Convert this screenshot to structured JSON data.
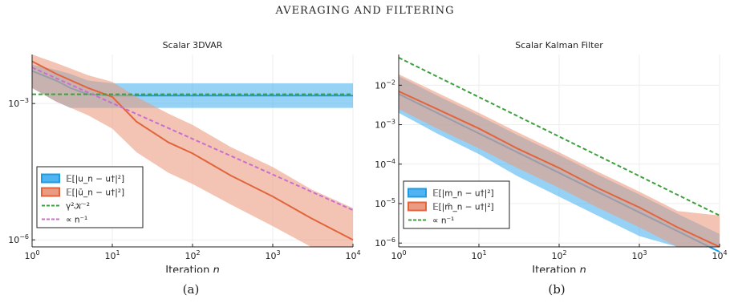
{
  "figure": {
    "title": "AVERAGING AND FILTERING",
    "subcaptions": [
      "(a)",
      "(b)"
    ]
  },
  "chart_data": [
    {
      "type": "line",
      "title": "Scalar 3DVAR",
      "xlabel": "Iteration n",
      "ylabel": "",
      "xscale": "log",
      "yscale": "log",
      "xlim": [
        1,
        10000
      ],
      "ylim": [
        7e-07,
        0.012
      ],
      "xticks": [
        {
          "v": 1,
          "b": "10",
          "e": "0"
        },
        {
          "v": 10,
          "b": "10",
          "e": "1"
        },
        {
          "v": 100,
          "b": "10",
          "e": "2"
        },
        {
          "v": 1000,
          "b": "10",
          "e": "3"
        },
        {
          "v": 10000,
          "b": "10",
          "e": "4"
        }
      ],
      "yticks": [
        {
          "v": 0.001,
          "b": "10",
          "e": "−3"
        },
        {
          "v": 1e-06,
          "b": "10",
          "e": "−6"
        }
      ],
      "grid": true,
      "legend_position": "bottom-left",
      "series": [
        {
          "name": "𝔼[|u_n − u†|²]",
          "kind": "band",
          "color": "#1e9be6",
          "fill": "#4fb4f0",
          "x": [
            1,
            2,
            3,
            5,
            10,
            20,
            50,
            100,
            300,
            1000,
            3000,
            10000
          ],
          "y": [
            0.0052,
            0.0032,
            0.0022,
            0.0016,
            0.0015,
            0.0015,
            0.0015,
            0.0015,
            0.0015,
            0.0015,
            0.0015,
            0.0015
          ],
          "lower": [
            0.0022,
            0.0011,
            0.0008,
            0.0008,
            0.0008,
            0.0008,
            0.0008,
            0.0008,
            0.0008,
            0.0008,
            0.0008,
            0.0008
          ],
          "upper": [
            0.0072,
            0.0055,
            0.0045,
            0.0032,
            0.0028,
            0.0028,
            0.0028,
            0.0028,
            0.0028,
            0.0028,
            0.0028,
            0.0028
          ]
        },
        {
          "name": "𝔼[|ū_n − u†|²]",
          "kind": "band",
          "color": "#e2643c",
          "fill": "#eb9c80",
          "x": [
            1,
            2,
            5,
            10,
            20,
            50,
            100,
            300,
            1000,
            3000,
            10000
          ],
          "y": [
            0.0085,
            0.0045,
            0.0022,
            0.0014,
            0.0004,
            0.00014,
            8e-05,
            2.6e-05,
            9e-06,
            3e-06,
            1e-06
          ],
          "lower": [
            0.0022,
            0.0011,
            0.00055,
            0.00028,
            8.5e-05,
            3e-05,
            1.7e-05,
            6e-06,
            2e-06,
            7e-07,
            7e-07
          ],
          "upper": [
            0.012,
            0.0078,
            0.0042,
            0.003,
            0.0014,
            0.0006,
            0.00034,
            0.00011,
            4e-05,
            1.3e-05,
            5e-06
          ]
        },
        {
          "name": "γ²𝒦⁻²",
          "kind": "line",
          "style": "dashed",
          "color": "#3ca03c",
          "x": [
            1,
            10000
          ],
          "y": [
            0.0016,
            0.0016
          ]
        },
        {
          "name": "∝ n⁻¹",
          "kind": "line",
          "style": "dashed",
          "color": "#c86ed2",
          "x": [
            1,
            10000
          ],
          "y": [
            0.0062,
            4.5e-06
          ]
        }
      ]
    },
    {
      "type": "line",
      "title": "Scalar Kalman Filter",
      "xlabel": "Iteration n",
      "ylabel": "",
      "xscale": "log",
      "yscale": "log",
      "xlim": [
        1,
        10000
      ],
      "ylim": [
        8e-07,
        0.06
      ],
      "xticks": [
        {
          "v": 1,
          "b": "10",
          "e": "0"
        },
        {
          "v": 10,
          "b": "10",
          "e": "1"
        },
        {
          "v": 100,
          "b": "10",
          "e": "2"
        },
        {
          "v": 1000,
          "b": "10",
          "e": "3"
        },
        {
          "v": 10000,
          "b": "10",
          "e": "4"
        }
      ],
      "yticks": [
        {
          "v": 0.01,
          "b": "10",
          "e": "−2"
        },
        {
          "v": 0.001,
          "b": "10",
          "e": "−3"
        },
        {
          "v": 0.0001,
          "b": "10",
          "e": "−4"
        },
        {
          "v": 1e-05,
          "b": "10",
          "e": "−5"
        },
        {
          "v": 1e-06,
          "b": "10",
          "e": "−6"
        }
      ],
      "grid": true,
      "legend_position": "bottom-left",
      "series": [
        {
          "name": "𝔼[|m_n − u†|²]",
          "kind": "band",
          "color": "#1e9be6",
          "fill": "#4fb4f0",
          "x": [
            1,
            3,
            10,
            30,
            100,
            300,
            1000,
            3000,
            10000
          ],
          "y": [
            0.006,
            0.002,
            0.0006,
            0.0002,
            6e-05,
            2e-05,
            6e-06,
            2e-06,
            6e-07
          ],
          "lower": [
            0.002,
            0.0006,
            0.00018,
            5e-05,
            1.5e-05,
            5e-06,
            1.5e-06,
            8e-07,
            8e-07
          ],
          "upper": [
            0.017,
            0.0055,
            0.0017,
            0.00055,
            0.00017,
            5.5e-05,
            1.7e-05,
            5.5e-06,
            1.7e-06
          ]
        },
        {
          "name": "𝔼[|m̄_n − u†|²]",
          "kind": "band",
          "color": "#e2643c",
          "fill": "#eb9c80",
          "x": [
            1,
            3,
            10,
            30,
            100,
            300,
            1000,
            3000,
            10000
          ],
          "y": [
            0.007,
            0.0025,
            0.0008,
            0.00025,
            8e-05,
            2.5e-05,
            8e-06,
            2.5e-06,
            8e-07
          ],
          "lower": [
            0.0025,
            0.0008,
            0.00025,
            8e-05,
            2.5e-05,
            8e-06,
            2.5e-06,
            8e-07,
            8e-07
          ],
          "upper": [
            0.019,
            0.0065,
            0.002,
            0.00065,
            0.0002,
            6.5e-05,
            2e-05,
            6.5e-06,
            5e-06
          ]
        },
        {
          "name": "∝ n⁻¹",
          "kind": "line",
          "style": "dashed",
          "color": "#3ca03c",
          "x": [
            1,
            10000
          ],
          "y": [
            0.05,
            5e-06
          ]
        }
      ]
    }
  ]
}
